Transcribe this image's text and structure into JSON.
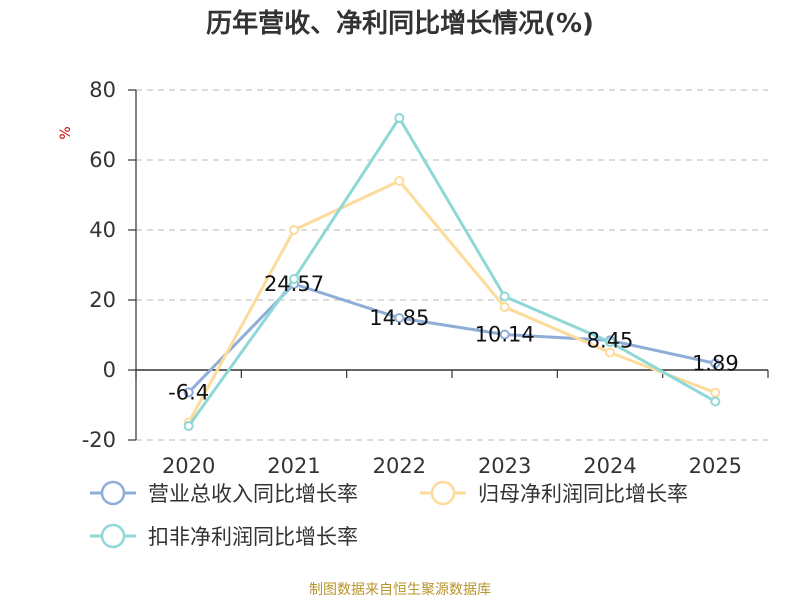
{
  "chart_data": {
    "type": "line",
    "title": "历年营收、净利同比增长情况(%)",
    "ylabel": "%",
    "xlabel": "",
    "categories": [
      "2020",
      "2021",
      "2022",
      "2023",
      "2024",
      "2025"
    ],
    "ylim": [
      -20,
      80
    ],
    "yticks": [
      "80",
      "60",
      "40",
      "20",
      "0",
      "-20"
    ],
    "grid": true,
    "legend_position": "bottom",
    "series": [
      {
        "name": "营业总收入同比增长率",
        "values": [
          -6.4,
          24.57,
          14.85,
          10.14,
          8.45,
          1.89
        ],
        "data_labels": [
          "-6.4",
          "24.57",
          "14.85",
          "10.14",
          "8.45",
          "1.89"
        ],
        "color": "#8eadd9"
      },
      {
        "name": "归母净利润同比增长率",
        "values": [
          -15,
          40,
          54,
          18,
          5,
          -6.5
        ],
        "color": "#fcdb9b"
      },
      {
        "name": "扣非净利润同比增长率",
        "values": [
          -16,
          26,
          72,
          21,
          8,
          -9
        ],
        "color": "#8fd8d8"
      }
    ]
  },
  "source": "制图数据来自恒生聚源数据库"
}
